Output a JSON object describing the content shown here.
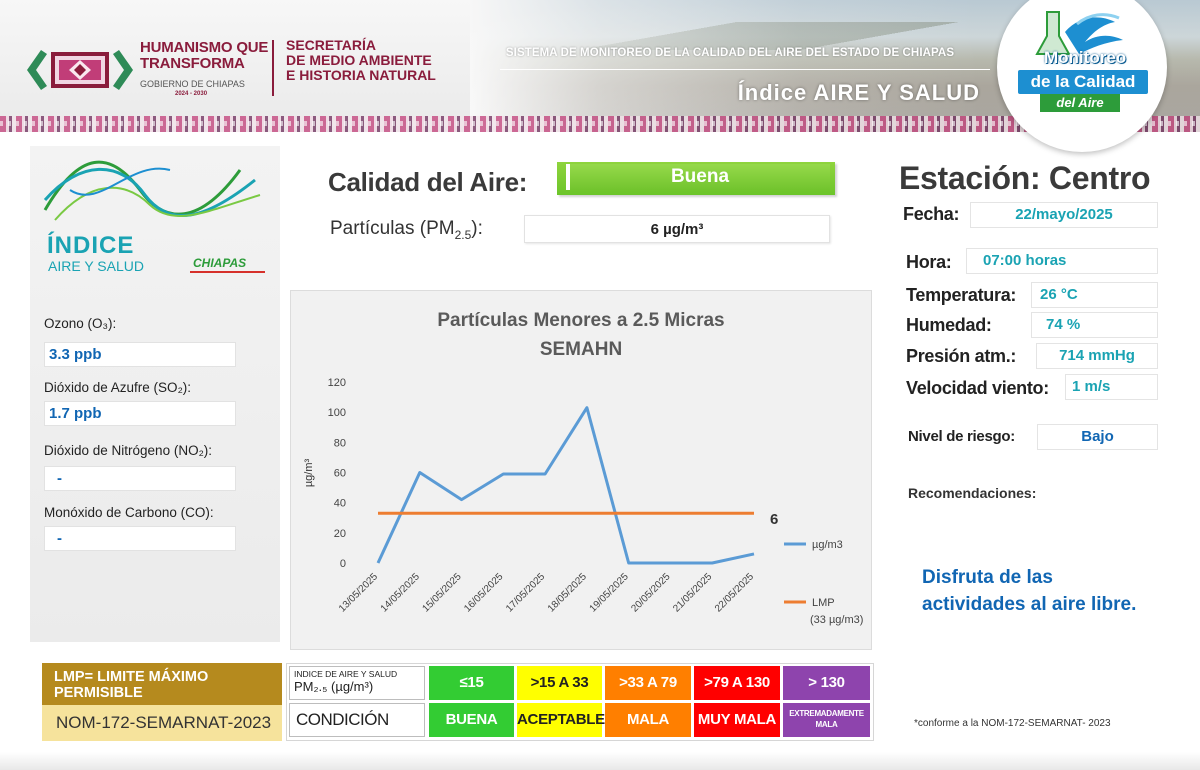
{
  "header": {
    "gov_line1": "HUMANISMO QUE",
    "gov_line2": "TRANSFORMA",
    "gov_line3": "GOBIERNO DE CHIAPAS",
    "gov_years": "2024 - 2030",
    "secretaria_line1": "SECRETARÍA",
    "secretaria_line2": "DE MEDIO AMBIENTE",
    "secretaria_line3": "E HISTORIA NATURAL",
    "system_title": "SISTEMA DE MONITOREO DE LA CALIDAD DEL AIRE DEL ESTADO DE CHIAPAS",
    "index_title": "Índice AIRE Y SALUD",
    "monitoreo_line1": "Monitoreo",
    "monitoreo_line2": "de la Calidad",
    "monitoreo_line3": "del Aire"
  },
  "index_logo": {
    "line1": "ÍNDICE",
    "line2": "AIRE Y SALUD",
    "line3": "CHIAPAS"
  },
  "pollutants": [
    {
      "label": "Ozono (O₃):",
      "value": "3.3 ppb"
    },
    {
      "label": "Dióxido de Azufre  (SO₂):",
      "value": "1.7 ppb"
    },
    {
      "label": "Dióxido de Nitrógeno (NO₂):",
      "value": "-"
    },
    {
      "label": "Monóxido de Carbono (CO):",
      "value": "-"
    }
  ],
  "calidad": {
    "label": "Calidad del Aire:",
    "value": "Buena",
    "value_color": "#7ccb34"
  },
  "particulas": {
    "label_main": "Partículas (PM",
    "label_sub": "2.5",
    "label_end": "):",
    "value": "6 µg/m³"
  },
  "chart_data": {
    "type": "line",
    "title_line1": "Partículas  Menores a 2.5 Micras",
    "title_line2": "SEMAHN",
    "ylabel": "µg/m³",
    "xlabel": "",
    "ylim": [
      0,
      120
    ],
    "yticks": [
      0,
      20,
      40,
      60,
      80,
      100,
      120
    ],
    "categories": [
      "13/05/2025",
      "14/05/2025",
      "15/05/2025",
      "16/05/2025",
      "17/05/2025",
      "18/05/2025",
      "19/05/2025",
      "20/05/2025",
      "21/05/2025",
      "22/05/2025"
    ],
    "series": [
      {
        "name": "µg/m3",
        "values": [
          0,
          60,
          42,
          59,
          59,
          103,
          0,
          0,
          0,
          6
        ],
        "color": "#5b9bd5"
      },
      {
        "name": "LMP",
        "values": [
          33,
          33,
          33,
          33,
          33,
          33,
          33,
          33,
          33,
          33
        ],
        "color": "#ed7d31"
      }
    ],
    "legend": [
      {
        "label": "µg/m3",
        "color": "#5b9bd5"
      },
      {
        "label": "LMP",
        "label2": "(33 µg/m3)",
        "color": "#ed7d31"
      }
    ],
    "legend_position": "right",
    "annotation": "6",
    "grid": false
  },
  "estacion": {
    "title": "Estación: Centro",
    "fecha_label": "Fecha:",
    "fecha_value": "22/mayo/2025",
    "hora_label": "Hora:",
    "hora_value": "07:00 horas",
    "temp_label": "Temperatura:",
    "temp_value": "26 °C",
    "hum_label": "Humedad:",
    "hum_value": "74 %",
    "pres_label": "Presión atm.:",
    "pres_value": "714 mmHg",
    "vel_label": "Velocidad viento:",
    "vel_value": "1 m/s",
    "riesgo_label": "Nivel de riesgo:",
    "riesgo_value": "Bajo"
  },
  "recomendaciones": {
    "title": "Recomendaciones:",
    "text": "Disfruta de las actividades al aire libre."
  },
  "lmp": {
    "line1": "LMP= LIMITE MÁXIMO",
    "line2": "PERMISIBLE",
    "norm": "NOM-172-SEMARNAT-2023"
  },
  "scale": {
    "header_line1": "INDICE DE AIRE Y SALUD",
    "header_line2": "PM₂.₅ (µg/m³)",
    "condition_label": "CONDICIÓN",
    "ranges": [
      "≤15",
      ">15 A 33",
      ">33 A 79",
      ">79 A 130",
      "> 130"
    ],
    "conditions": [
      "BUENA",
      "ACEPTABLE",
      "MALA",
      "MUY MALA",
      "EXTREMADAMENTE MALA"
    ],
    "colors": [
      "#33cc33",
      "#ffff00",
      "#ff7f00",
      "#ff0000",
      "#8e44ad"
    ]
  },
  "footnote": "*conforme a la NOM-172-SEMARNAT- 2023"
}
